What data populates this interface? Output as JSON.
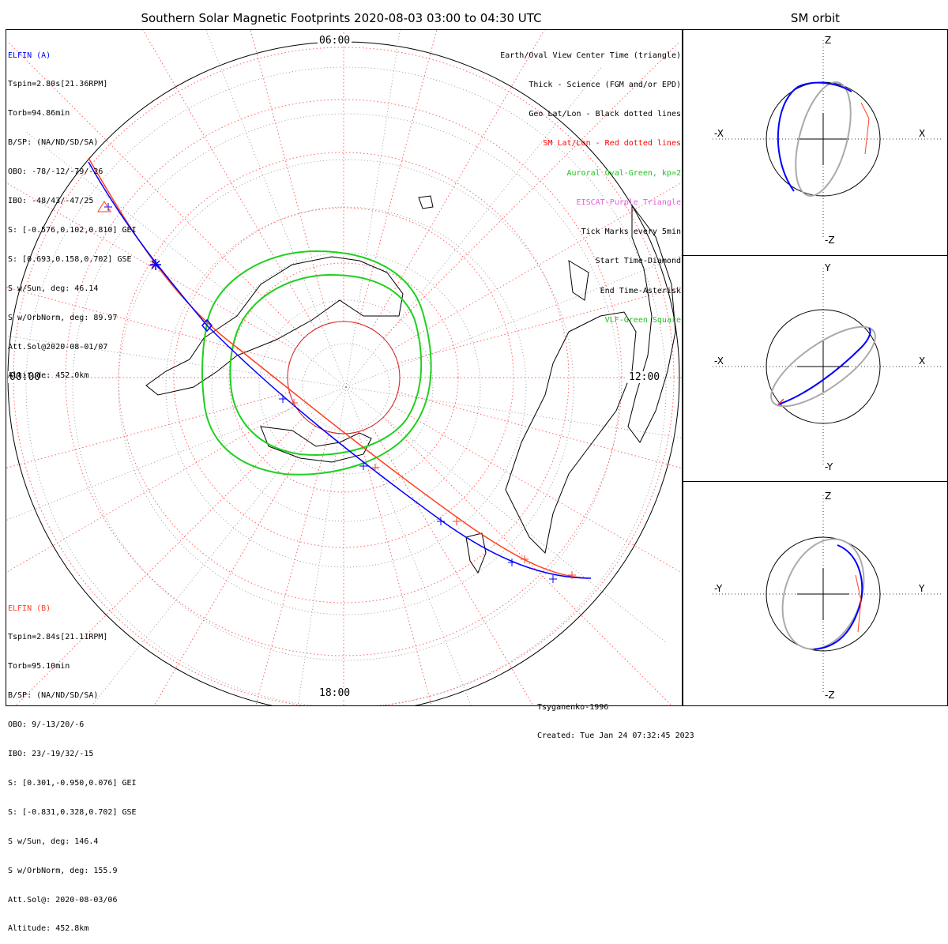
{
  "title": "Southern Solar Magnetic Footprints 2020-08-03 03:00 to 04:30 UTC",
  "orbit_title": "SM orbit",
  "colors": {
    "elfin_a": "#0000ff",
    "elfin_b": "#ff4020",
    "oval": "#20d020",
    "grid": "#ff6060",
    "eiscat": "#e060e0",
    "geo": "#000000"
  },
  "time_labels": {
    "top": "06:00",
    "left": "00:00",
    "right": "12:00",
    "bottom": "18:00"
  },
  "elfin_a": {
    "name": "ELFIN (A)",
    "lines": [
      "Tspin=2.80s[21.36RPM]",
      "Torb=94.86min",
      "B/SP: (NA/ND/SD/SA)",
      "OBO: -78/-12/-79/-26",
      "IBO: -48/43/-47/25",
      "S: [-0.576,0.102,0.810] GEI",
      "S: [0.693,0.158,0.702] GSE",
      "S w/Sun, deg: 46.14",
      "S w/OrbNorm, deg: 89.97",
      "Att.Sol@2020-08-01/07",
      "Altitude: 452.0km"
    ]
  },
  "elfin_b": {
    "name": "ELFIN (B)",
    "lines": [
      "Tspin=2.84s[21.11RPM]",
      "Torb=95.10min",
      "B/SP: (NA/ND/SD/SA)",
      "OBO: 9/-13/20/-6",
      "IBO: 23/-19/32/-15",
      "S: [0.301,-0.950,0.076] GEI",
      "S: [-0.831,0.328,0.702] GSE",
      "S w/Sun, deg: 146.4",
      "S w/OrbNorm, deg: 155.9",
      "Att.Sol@: 2020-08-03/06",
      "Altitude: 452.8km"
    ]
  },
  "legend": [
    {
      "text": "Earth/Oval View Center Time (triangle)",
      "color": "#000000"
    },
    {
      "text": "Thick - Science (FGM and/or EPD)",
      "color": "#000000"
    },
    {
      "text": "Geo Lat/Lon - Black dotted lines",
      "color": "#000000"
    },
    {
      "text": "SM Lat/Lon - Red dotted lines",
      "color": "#ff0000"
    },
    {
      "text": "Auroral Oval-Green, kp=2",
      "color": "#20c020"
    },
    {
      "text": "EISCAT-Purple Triangle",
      "color": "#e060e0"
    },
    {
      "text": "Tick Marks every 5min",
      "color": "#000000"
    },
    {
      "text": "Start Time-Diamond",
      "color": "#000000"
    },
    {
      "text": "End Time-Asterisk",
      "color": "#000000"
    },
    {
      "text": "VLF-Green Square",
      "color": "#20c020"
    }
  ],
  "credit": {
    "model": "Tsyganenko-1996",
    "created": "Created: Tue Jan 24 07:32:45 2023"
  },
  "orbit_panels": [
    {
      "top": "Z",
      "bottom": "-Z",
      "left": "-X",
      "right": "X"
    },
    {
      "top": "Y",
      "bottom": "-Y",
      "left": "-X",
      "right": "X"
    },
    {
      "top": "Z",
      "bottom": "-Z",
      "left": "-Y",
      "right": "Y"
    }
  ],
  "chart_data": {
    "type": "scatter",
    "title": "Southern Solar Magnetic Footprints 2020-08-03 03:00 to 04:30 UTC",
    "series": [
      {
        "name": "ELFIN (A)"
      },
      {
        "name": "ELFIN (B)"
      }
    ],
    "grid": true
  }
}
